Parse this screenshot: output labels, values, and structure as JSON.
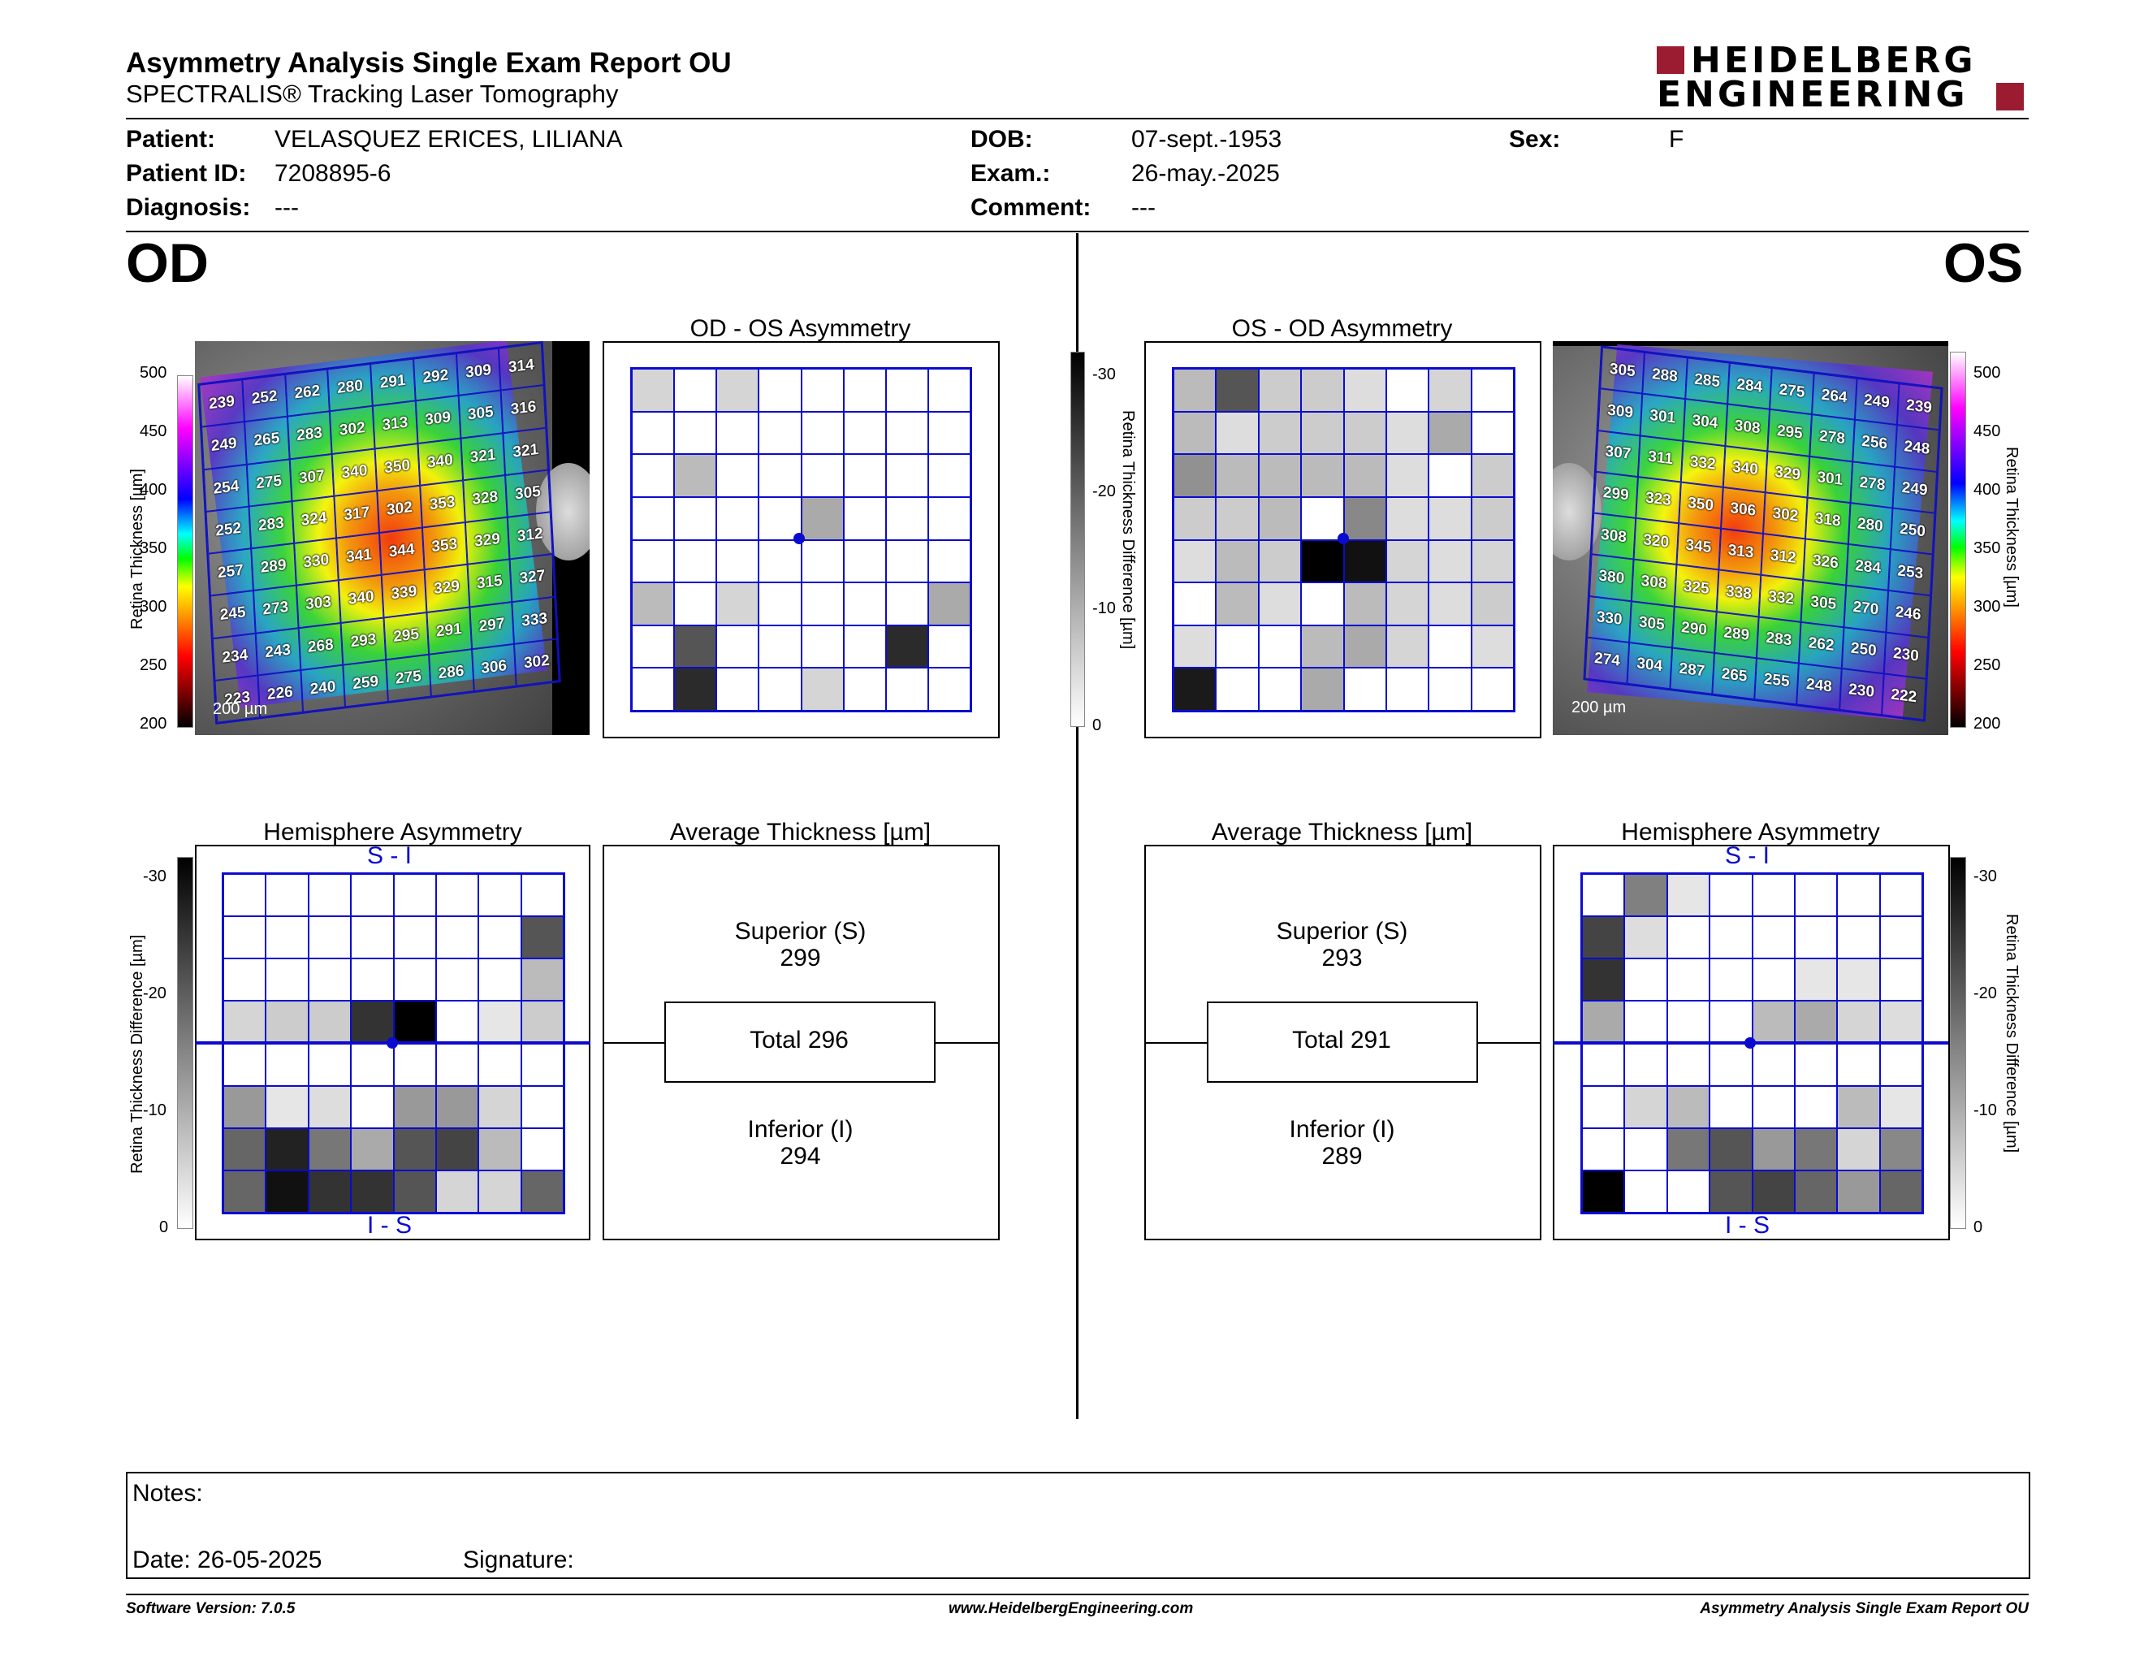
{
  "header": {
    "title": "Asymmetry Analysis Single Exam Report OU",
    "subtitle": "SPECTRALIS® Tracking Laser Tomography",
    "logo_line1": "HEIDELBERG",
    "logo_line2": "ENGINEERING"
  },
  "patient": {
    "patient_label": "Patient:",
    "patient_value": "VELASQUEZ ERICES, LILIANA",
    "id_label": "Patient ID:",
    "id_value": "7208895-6",
    "diagnosis_label": "Diagnosis:",
    "diagnosis_value": "---",
    "dob_label": "DOB:",
    "dob_value": "07-sept.-1953",
    "exam_label": "Exam.:",
    "exam_value": "26-may.-2025",
    "comment_label": "Comment:",
    "comment_value": "---",
    "sex_label": "Sex:",
    "sex_value": "F"
  },
  "eyes": {
    "od": "OD",
    "os": "OS"
  },
  "thickness_scale": {
    "label": "Retina Thickness [µm]",
    "ticks": [
      "500",
      "450",
      "400",
      "350",
      "300",
      "250",
      "200"
    ]
  },
  "diff_scale": {
    "label": "Retina Thickness Difference [µm]",
    "ticks": [
      "-30",
      "-20",
      "-10",
      "0"
    ]
  },
  "od": {
    "asym_title": "OD - OS Asymmetry",
    "scale_bar": "200 µm",
    "thickness_grid": [
      [
        "239",
        "252",
        "262",
        "280",
        "291",
        "292",
        "309",
        "314"
      ],
      [
        "249",
        "265",
        "283",
        "302",
        "313",
        "309",
        "305",
        "316"
      ],
      [
        "254",
        "275",
        "307",
        "340",
        "350",
        "340",
        "321",
        "321"
      ],
      [
        "252",
        "283",
        "324",
        "317",
        "302",
        "353",
        "328",
        "305"
      ],
      [
        "257",
        "289",
        "330",
        "341",
        "344",
        "353",
        "329",
        "312"
      ],
      [
        "245",
        "273",
        "303",
        "340",
        "339",
        "329",
        "315",
        "327"
      ],
      [
        "234",
        "243",
        "268",
        "293",
        "295",
        "291",
        "297",
        "333"
      ],
      [
        "223",
        "226",
        "240",
        "259",
        "275",
        "286",
        "306",
        "302"
      ]
    ],
    "asym_grid": [
      [
        5,
        0,
        5,
        0,
        0,
        0,
        0,
        0
      ],
      [
        0,
        0,
        0,
        0,
        0,
        0,
        0,
        0
      ],
      [
        0,
        8,
        0,
        0,
        0,
        0,
        0,
        0
      ],
      [
        0,
        0,
        0,
        0,
        10,
        0,
        0,
        0
      ],
      [
        0,
        0,
        0,
        0,
        0,
        0,
        0,
        0
      ],
      [
        8,
        0,
        5,
        0,
        0,
        0,
        0,
        10
      ],
      [
        0,
        20,
        0,
        0,
        0,
        0,
        25,
        0
      ],
      [
        0,
        25,
        0,
        0,
        5,
        0,
        0,
        0
      ]
    ],
    "hemi_title": "Hemisphere Asymmetry",
    "hemi_top": "S - I",
    "hemi_bottom": "I - S",
    "hemi_grid": [
      [
        0,
        0,
        0,
        0,
        0,
        0,
        0,
        0
      ],
      [
        0,
        0,
        0,
        0,
        0,
        0,
        0,
        20
      ],
      [
        0,
        0,
        0,
        0,
        0,
        0,
        0,
        8
      ],
      [
        5,
        6,
        6,
        24,
        30,
        0,
        3,
        6
      ],
      [
        0,
        0,
        0,
        0,
        0,
        0,
        0,
        0
      ],
      [
        12,
        3,
        4,
        0,
        12,
        12,
        5,
        0
      ],
      [
        18,
        26,
        16,
        10,
        20,
        22,
        8,
        0
      ],
      [
        18,
        28,
        24,
        24,
        20,
        5,
        5,
        18
      ]
    ],
    "avg_title": "Average Thickness [µm]",
    "superior_label": "Superior (S)",
    "superior_value": "299",
    "total_label": "Total 296",
    "inferior_label": "Inferior (I)",
    "inferior_value": "294"
  },
  "os": {
    "asym_title": "OS - OD Asymmetry",
    "scale_bar": "200 µm",
    "thickness_grid": [
      [
        "305",
        "288",
        "285",
        "284",
        "275",
        "264",
        "249",
        "239"
      ],
      [
        "309",
        "301",
        "304",
        "308",
        "295",
        "278",
        "256",
        "248"
      ],
      [
        "307",
        "311",
        "332",
        "340",
        "329",
        "301",
        "278",
        "249"
      ],
      [
        "299",
        "323",
        "350",
        "306",
        "302",
        "318",
        "280",
        "250"
      ],
      [
        "308",
        "320",
        "345",
        "313",
        "312",
        "326",
        "284",
        "253"
      ],
      [
        "380",
        "308",
        "325",
        "338",
        "332",
        "305",
        "270",
        "246"
      ],
      [
        "330",
        "305",
        "290",
        "289",
        "283",
        "262",
        "250",
        "230"
      ],
      [
        "274",
        "304",
        "287",
        "265",
        "255",
        "248",
        "230",
        "222"
      ]
    ],
    "asym_grid": [
      [
        8,
        20,
        6,
        6,
        4,
        0,
        5,
        0
      ],
      [
        8,
        4,
        6,
        6,
        6,
        4,
        10,
        0
      ],
      [
        13,
        8,
        8,
        8,
        8,
        4,
        0,
        6
      ],
      [
        6,
        6,
        8,
        0,
        14,
        4,
        4,
        6
      ],
      [
        4,
        8,
        6,
        30,
        28,
        5,
        4,
        5
      ],
      [
        0,
        8,
        4,
        0,
        8,
        5,
        4,
        6
      ],
      [
        4,
        0,
        0,
        8,
        10,
        5,
        0,
        4
      ],
      [
        27,
        0,
        0,
        10,
        0,
        0,
        0,
        0
      ]
    ],
    "hemi_title": "Hemisphere Asymmetry",
    "hemi_top": "S - I",
    "hemi_bottom": "I - S",
    "hemi_grid": [
      [
        0,
        15,
        3,
        0,
        0,
        0,
        0,
        0
      ],
      [
        22,
        4,
        0,
        0,
        0,
        0,
        0,
        0
      ],
      [
        24,
        0,
        0,
        0,
        0,
        3,
        3,
        0
      ],
      [
        10,
        0,
        0,
        0,
        8,
        10,
        5,
        4
      ],
      [
        0,
        0,
        0,
        0,
        0,
        0,
        0,
        0
      ],
      [
        0,
        5,
        8,
        0,
        0,
        0,
        8,
        3
      ],
      [
        0,
        0,
        16,
        20,
        12,
        16,
        5,
        14
      ],
      [
        30,
        0,
        0,
        20,
        22,
        18,
        12,
        18
      ]
    ],
    "avg_title": "Average Thickness [µm]",
    "superior_label": "Superior (S)",
    "superior_value": "293",
    "total_label": "Total 291",
    "inferior_label": "Inferior (I)",
    "inferior_value": "289"
  },
  "notes": {
    "notes_label": "Notes:",
    "date_label": "Date: 26-05-2025",
    "signature_label": "Signature:"
  },
  "footer": {
    "version": "Software Version: 7.0.5",
    "website": "www.HeidelbergEngineering.com",
    "report": "Asymmetry Analysis Single Exam Report OU"
  },
  "colors": {
    "grid_blue": "#0b0bd0",
    "logo_red": "#9b1b30",
    "thickness_colorbar": [
      "#ffffff",
      "#ff00ff",
      "#8000ff",
      "#0000ff",
      "#00ffff",
      "#00ff00",
      "#ffff00",
      "#ff8000",
      "#ff0000",
      "#000000"
    ]
  }
}
